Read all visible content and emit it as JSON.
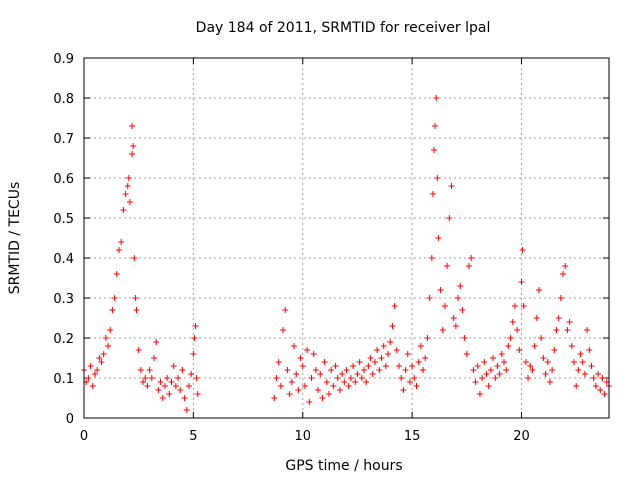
{
  "chart_data": {
    "type": "scatter",
    "title": "Day 184 of 2011, SRMTID for receiver lpal",
    "xlabel": "GPS time / hours",
    "ylabel": "SRMTID / TECUs",
    "xlim": [
      0,
      24
    ],
    "ylim": [
      0,
      0.9
    ],
    "xticks": [
      0,
      5,
      10,
      15,
      20
    ],
    "xtick_labels": [
      "0",
      "5",
      "10",
      "15",
      "20"
    ],
    "yticks": [
      0,
      0.1,
      0.2,
      0.3,
      0.4,
      0.5,
      0.6,
      0.7,
      0.8,
      0.9
    ],
    "ytick_labels": [
      "0",
      "0.1",
      "0.2",
      "0.3",
      "0.4",
      "0.5",
      "0.6",
      "0.7",
      "0.8",
      "0.9"
    ],
    "grid": true,
    "marker": "+",
    "color": "#ff0000",
    "series": [
      {
        "name": "lpal",
        "points": [
          [
            0.0,
            0.12
          ],
          [
            0.1,
            0.09
          ],
          [
            0.2,
            0.1
          ],
          [
            0.3,
            0.13
          ],
          [
            0.4,
            0.08
          ],
          [
            0.5,
            0.11
          ],
          [
            0.6,
            0.12
          ],
          [
            0.7,
            0.15
          ],
          [
            0.8,
            0.14
          ],
          [
            0.9,
            0.16
          ],
          [
            1.0,
            0.2
          ],
          [
            1.1,
            0.18
          ],
          [
            1.2,
            0.22
          ],
          [
            1.3,
            0.27
          ],
          [
            1.4,
            0.3
          ],
          [
            1.5,
            0.36
          ],
          [
            1.6,
            0.42
          ],
          [
            1.7,
            0.44
          ],
          [
            1.8,
            0.52
          ],
          [
            1.9,
            0.56
          ],
          [
            2.0,
            0.58
          ],
          [
            2.05,
            0.6
          ],
          [
            2.1,
            0.54
          ],
          [
            2.2,
            0.66
          ],
          [
            2.2,
            0.73
          ],
          [
            2.25,
            0.68
          ],
          [
            2.3,
            0.4
          ],
          [
            2.35,
            0.3
          ],
          [
            2.4,
            0.27
          ],
          [
            2.5,
            0.17
          ],
          [
            2.6,
            0.12
          ],
          [
            2.7,
            0.09
          ],
          [
            2.8,
            0.1
          ],
          [
            2.9,
            0.08
          ],
          [
            3.0,
            0.12
          ],
          [
            3.1,
            0.1
          ],
          [
            3.2,
            0.15
          ],
          [
            3.3,
            0.19
          ],
          [
            3.4,
            0.07
          ],
          [
            3.5,
            0.09
          ],
          [
            3.6,
            0.05
          ],
          [
            3.7,
            0.08
          ],
          [
            3.8,
            0.1
          ],
          [
            3.9,
            0.06
          ],
          [
            4.0,
            0.09
          ],
          [
            4.1,
            0.13
          ],
          [
            4.2,
            0.08
          ],
          [
            4.3,
            0.1
          ],
          [
            4.4,
            0.07
          ],
          [
            4.5,
            0.12
          ],
          [
            4.6,
            0.05
          ],
          [
            4.7,
            0.02
          ],
          [
            4.8,
            0.08
          ],
          [
            4.9,
            0.11
          ],
          [
            5.0,
            0.16
          ],
          [
            5.05,
            0.2
          ],
          [
            5.1,
            0.23
          ],
          [
            5.15,
            0.1
          ],
          [
            5.2,
            0.06
          ],
          [
            8.7,
            0.05
          ],
          [
            8.8,
            0.1
          ],
          [
            8.9,
            0.14
          ],
          [
            9.0,
            0.08
          ],
          [
            9.1,
            0.22
          ],
          [
            9.2,
            0.27
          ],
          [
            9.3,
            0.12
          ],
          [
            9.4,
            0.06
          ],
          [
            9.5,
            0.09
          ],
          [
            9.6,
            0.18
          ],
          [
            9.7,
            0.11
          ],
          [
            9.8,
            0.07
          ],
          [
            9.9,
            0.15
          ],
          [
            10.0,
            0.13
          ],
          [
            10.1,
            0.08
          ],
          [
            10.2,
            0.17
          ],
          [
            10.3,
            0.04
          ],
          [
            10.4,
            0.1
          ],
          [
            10.5,
            0.16
          ],
          [
            10.6,
            0.12
          ],
          [
            10.7,
            0.07
          ],
          [
            10.8,
            0.11
          ],
          [
            10.9,
            0.05
          ],
          [
            11.0,
            0.14
          ],
          [
            11.1,
            0.09
          ],
          [
            11.2,
            0.06
          ],
          [
            11.3,
            0.12
          ],
          [
            11.4,
            0.08
          ],
          [
            11.5,
            0.13
          ],
          [
            11.6,
            0.1
          ],
          [
            11.7,
            0.07
          ],
          [
            11.8,
            0.11
          ],
          [
            11.9,
            0.09
          ],
          [
            12.0,
            0.12
          ],
          [
            12.1,
            0.08
          ],
          [
            12.2,
            0.1
          ],
          [
            12.3,
            0.13
          ],
          [
            12.4,
            0.09
          ],
          [
            12.5,
            0.11
          ],
          [
            12.6,
            0.14
          ],
          [
            12.7,
            0.1
          ],
          [
            12.8,
            0.12
          ],
          [
            12.9,
            0.09
          ],
          [
            13.0,
            0.13
          ],
          [
            13.1,
            0.15
          ],
          [
            13.2,
            0.11
          ],
          [
            13.3,
            0.14
          ],
          [
            13.4,
            0.17
          ],
          [
            13.5,
            0.12
          ],
          [
            13.6,
            0.15
          ],
          [
            13.7,
            0.18
          ],
          [
            13.8,
            0.13
          ],
          [
            13.9,
            0.16
          ],
          [
            14.0,
            0.19
          ],
          [
            14.1,
            0.23
          ],
          [
            14.2,
            0.28
          ],
          [
            14.3,
            0.17
          ],
          [
            14.4,
            0.13
          ],
          [
            14.5,
            0.1
          ],
          [
            14.6,
            0.07
          ],
          [
            14.7,
            0.12
          ],
          [
            14.8,
            0.16
          ],
          [
            14.9,
            0.09
          ],
          [
            15.0,
            0.13
          ],
          [
            15.1,
            0.1
          ],
          [
            15.2,
            0.08
          ],
          [
            15.3,
            0.14
          ],
          [
            15.4,
            0.18
          ],
          [
            15.5,
            0.12
          ],
          [
            15.6,
            0.15
          ],
          [
            15.7,
            0.2
          ],
          [
            15.8,
            0.3
          ],
          [
            15.9,
            0.4
          ],
          [
            15.95,
            0.56
          ],
          [
            16.0,
            0.67
          ],
          [
            16.05,
            0.73
          ],
          [
            16.1,
            0.8
          ],
          [
            16.15,
            0.6
          ],
          [
            16.2,
            0.45
          ],
          [
            16.3,
            0.32
          ],
          [
            16.4,
            0.22
          ],
          [
            16.5,
            0.28
          ],
          [
            16.6,
            0.38
          ],
          [
            16.7,
            0.5
          ],
          [
            16.8,
            0.58
          ],
          [
            16.9,
            0.25
          ],
          [
            17.0,
            0.23
          ],
          [
            17.1,
            0.3
          ],
          [
            17.2,
            0.33
          ],
          [
            17.3,
            0.27
          ],
          [
            17.4,
            0.2
          ],
          [
            17.5,
            0.16
          ],
          [
            17.6,
            0.38
          ],
          [
            17.7,
            0.4
          ],
          [
            17.8,
            0.12
          ],
          [
            17.9,
            0.09
          ],
          [
            18.0,
            0.13
          ],
          [
            18.1,
            0.06
          ],
          [
            18.2,
            0.1
          ],
          [
            18.3,
            0.14
          ],
          [
            18.4,
            0.11
          ],
          [
            18.5,
            0.08
          ],
          [
            18.6,
            0.12
          ],
          [
            18.7,
            0.15
          ],
          [
            18.8,
            0.1
          ],
          [
            18.9,
            0.13
          ],
          [
            19.0,
            0.11
          ],
          [
            19.1,
            0.16
          ],
          [
            19.2,
            0.14
          ],
          [
            19.3,
            0.12
          ],
          [
            19.4,
            0.18
          ],
          [
            19.5,
            0.2
          ],
          [
            19.6,
            0.24
          ],
          [
            19.7,
            0.28
          ],
          [
            19.8,
            0.22
          ],
          [
            19.9,
            0.17
          ],
          [
            20.0,
            0.34
          ],
          [
            20.05,
            0.42
          ],
          [
            20.1,
            0.28
          ],
          [
            20.2,
            0.14
          ],
          [
            20.3,
            0.1
          ],
          [
            20.4,
            0.13
          ],
          [
            20.5,
            0.12
          ],
          [
            20.6,
            0.18
          ],
          [
            20.7,
            0.25
          ],
          [
            20.8,
            0.32
          ],
          [
            20.9,
            0.2
          ],
          [
            21.0,
            0.15
          ],
          [
            21.1,
            0.11
          ],
          [
            21.2,
            0.14
          ],
          [
            21.3,
            0.09
          ],
          [
            21.4,
            0.12
          ],
          [
            21.5,
            0.17
          ],
          [
            21.6,
            0.22
          ],
          [
            21.7,
            0.25
          ],
          [
            21.8,
            0.3
          ],
          [
            21.9,
            0.36
          ],
          [
            22.0,
            0.38
          ],
          [
            22.1,
            0.22
          ],
          [
            22.2,
            0.24
          ],
          [
            22.3,
            0.18
          ],
          [
            22.4,
            0.14
          ],
          [
            22.5,
            0.08
          ],
          [
            22.6,
            0.12
          ],
          [
            22.7,
            0.16
          ],
          [
            22.8,
            0.14
          ],
          [
            22.9,
            0.11
          ],
          [
            23.0,
            0.22
          ],
          [
            23.1,
            0.17
          ],
          [
            23.2,
            0.13
          ],
          [
            23.3,
            0.1
          ],
          [
            23.4,
            0.08
          ],
          [
            23.5,
            0.11
          ],
          [
            23.6,
            0.07
          ],
          [
            23.7,
            0.1
          ],
          [
            23.8,
            0.06
          ],
          [
            23.9,
            0.09
          ],
          [
            24.0,
            0.08
          ]
        ]
      }
    ]
  }
}
